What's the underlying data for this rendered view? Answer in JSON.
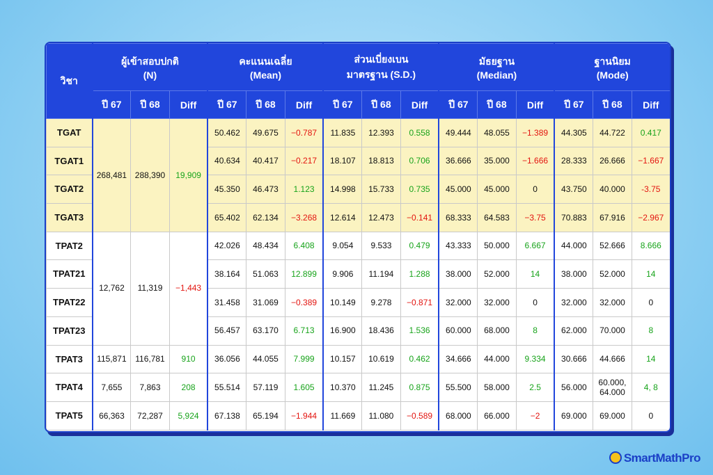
{
  "table": {
    "corner": "วิชา",
    "group_titles": [
      [
        "ผู้เข้าสอบปกติ",
        "(N)"
      ],
      [
        "คะแนนเฉลี่ย",
        "(Mean)"
      ],
      [
        "ส่วนเบี่ยงเบน",
        "มาตรฐาน (S.D.)"
      ],
      [
        "มัธยฐาน",
        "(Median)"
      ],
      [
        "ฐานนิยม",
        "(Mode)"
      ]
    ],
    "subheaders": [
      "ปี 67",
      "ปี 68",
      "Diff"
    ],
    "groups": [
      {
        "n": [
          "268,481",
          "288,390",
          "19,909"
        ],
        "rows": [
          {
            "subject": "TGAT",
            "stats": [
              [
                "50.462",
                "49.675",
                "−0.787"
              ],
              [
                "11.835",
                "12.393",
                "0.558"
              ],
              [
                "49.444",
                "48.055",
                "−1.389"
              ],
              [
                "44.305",
                "44.722",
                "0.417"
              ]
            ]
          },
          {
            "subject": "TGAT1",
            "stats": [
              [
                "40.634",
                "40.417",
                "−0.217"
              ],
              [
                "18.107",
                "18.813",
                "0.706"
              ],
              [
                "36.666",
                "35.000",
                "−1.666"
              ],
              [
                "28.333",
                "26.666",
                "−1.667"
              ]
            ]
          },
          {
            "subject": "TGAT2",
            "stats": [
              [
                "45.350",
                "46.473",
                "1.123"
              ],
              [
                "14.998",
                "15.733",
                "0.735"
              ],
              [
                "45.000",
                "45.000",
                "0"
              ],
              [
                "43.750",
                "40.000",
                "-3.75"
              ]
            ]
          },
          {
            "subject": "TGAT3",
            "stats": [
              [
                "65.402",
                "62.134",
                "−3.268"
              ],
              [
                "12.614",
                "12.473",
                "−0.141"
              ],
              [
                "68.333",
                "64.583",
                "−3.75"
              ],
              [
                "70.883",
                "67.916",
                "−2.967"
              ]
            ]
          }
        ]
      },
      {
        "n": [
          "12,762",
          "11,319",
          "−1,443"
        ],
        "rows": [
          {
            "subject": "TPAT2",
            "stats": [
              [
                "42.026",
                "48.434",
                "6.408"
              ],
              [
                "9.054",
                "9.533",
                "0.479"
              ],
              [
                "43.333",
                "50.000",
                "6.667"
              ],
              [
                "44.000",
                "52.666",
                "8.666"
              ]
            ]
          },
          {
            "subject": "TPAT21",
            "stats": [
              [
                "38.164",
                "51.063",
                "12.899"
              ],
              [
                "9.906",
                "11.194",
                "1.288"
              ],
              [
                "38.000",
                "52.000",
                "14"
              ],
              [
                "38.000",
                "52.000",
                "14"
              ]
            ]
          },
          {
            "subject": "TPAT22",
            "stats": [
              [
                "31.458",
                "31.069",
                "−0.389"
              ],
              [
                "10.149",
                "9.278",
                "−0.871"
              ],
              [
                "32.000",
                "32.000",
                "0"
              ],
              [
                "32.000",
                "32.000",
                "0"
              ]
            ]
          },
          {
            "subject": "TPAT23",
            "stats": [
              [
                "56.457",
                "63.170",
                "6.713"
              ],
              [
                "16.900",
                "18.436",
                "1.536"
              ],
              [
                "60.000",
                "68.000",
                "8"
              ],
              [
                "62.000",
                "70.000",
                "8"
              ]
            ]
          }
        ]
      },
      {
        "n": [
          "115,871",
          "116,781",
          "910"
        ],
        "rows": [
          {
            "subject": "TPAT3",
            "stats": [
              [
                "36.056",
                "44.055",
                "7.999"
              ],
              [
                "10.157",
                "10.619",
                "0.462"
              ],
              [
                "34.666",
                "44.000",
                "9.334"
              ],
              [
                "30.666",
                "44.666",
                "14"
              ]
            ]
          }
        ]
      },
      {
        "n": [
          "7,655",
          "7,863",
          "208"
        ],
        "rows": [
          {
            "subject": "TPAT4",
            "stats": [
              [
                "55.514",
                "57.119",
                "1.605"
              ],
              [
                "10.370",
                "11.245",
                "0.875"
              ],
              [
                "55.500",
                "58.000",
                "2.5"
              ],
              [
                "56.000",
                "60.000, 64.000",
                "4, 8"
              ]
            ]
          }
        ]
      },
      {
        "n": [
          "66,363",
          "72,287",
          "5,924"
        ],
        "rows": [
          {
            "subject": "TPAT5",
            "stats": [
              [
                "67.138",
                "65.194",
                "−1.944"
              ],
              [
                "11.669",
                "11.080",
                "−0.589"
              ],
              [
                "68.000",
                "66.000",
                "−2"
              ],
              [
                "69.000",
                "69.000",
                "0"
              ]
            ]
          }
        ]
      }
    ]
  },
  "logo": "SmartMathPro"
}
